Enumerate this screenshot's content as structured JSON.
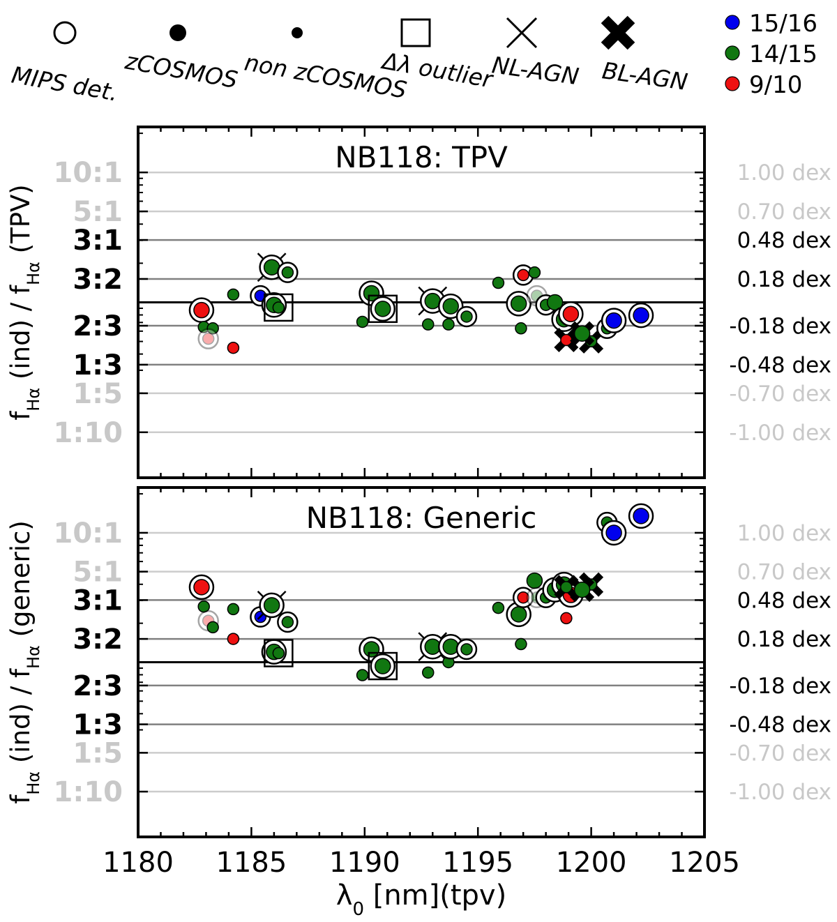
{
  "legend": {
    "symbols": [
      {
        "key": "open-circle",
        "label": "MIPS det."
      },
      {
        "key": "filled-circle-large",
        "label": "zCOSMOS"
      },
      {
        "key": "filled-circle-small",
        "label": "non zCOSMOS"
      },
      {
        "key": "square",
        "label": "Δλ outlier"
      },
      {
        "key": "thin-cross",
        "label": "NL-AGN"
      },
      {
        "key": "bold-cross",
        "label": "BL-AGN"
      }
    ],
    "colors": [
      {
        "label": "15/16",
        "color": "#0000ee"
      },
      {
        "label": "14/15",
        "color": "#117711"
      },
      {
        "label": "9/10",
        "color": "#ee1111"
      }
    ]
  },
  "x_label_parts": {
    "sym": "λ",
    "sub": "0",
    "rest": "[nm](tpv)"
  },
  "y_label_parts": {
    "f": "f",
    "sub": "Hα",
    "mid": " (ind) / f",
    "sub2": "Hα"
  },
  "chart_data": [
    {
      "type": "scatter",
      "title": "NB118: TPV",
      "xlabel": "λ0 [nm](tpv)",
      "ylabel": "fHα (ind) / fHα (TPV)",
      "ylabel_suffix": " (TPV)",
      "xlim": [
        1180,
        1205
      ],
      "xticks": [
        1180,
        1185,
        1190,
        1195,
        1200,
        1205
      ],
      "ylim_dex": [
        -1.35,
        1.35
      ],
      "hlines": [
        {
          "dex": 1.0,
          "ratio": "10:1",
          "dex_label": "1.00 dex",
          "style": "light"
        },
        {
          "dex": 0.7,
          "ratio": "5:1",
          "dex_label": "0.70 dex",
          "style": "light"
        },
        {
          "dex": 0.48,
          "ratio": "3:1",
          "dex_label": "0.48 dex",
          "style": "mid"
        },
        {
          "dex": 0.18,
          "ratio": "3:2",
          "dex_label": "0.18 dex",
          "style": "mid"
        },
        {
          "dex": 0.0,
          "ratio": "",
          "dex_label": "",
          "style": "zero"
        },
        {
          "dex": -0.18,
          "ratio": "2:3",
          "dex_label": "-0.18 dex",
          "style": "mid"
        },
        {
          "dex": -0.48,
          "ratio": "1:3",
          "dex_label": "-0.48 dex",
          "style": "mid"
        },
        {
          "dex": -0.7,
          "ratio": "1:5",
          "dex_label": "-0.70 dex",
          "style": "light"
        },
        {
          "dex": -1.0,
          "ratio": "1:10",
          "dex_label": "-1.00 dex",
          "style": "light"
        }
      ],
      "points": [
        {
          "x": 1182.8,
          "y": -0.06,
          "c": "r",
          "z": true,
          "m": true
        },
        {
          "x": 1182.9,
          "y": -0.19,
          "c": "g",
          "z": false,
          "m": false
        },
        {
          "x": 1183.3,
          "y": -0.2,
          "c": "g",
          "z": false,
          "m": false
        },
        {
          "x": 1183.1,
          "y": -0.28,
          "c": "r",
          "z": false,
          "m": true,
          "faded": true
        },
        {
          "x": 1184.2,
          "y": -0.35,
          "c": "r",
          "z": false,
          "m": false
        },
        {
          "x": 1184.2,
          "y": 0.06,
          "c": "g",
          "z": false,
          "m": false
        },
        {
          "x": 1185.4,
          "y": 0.05,
          "c": "b",
          "z": false,
          "m": true
        },
        {
          "x": 1185.9,
          "y": 0.27,
          "c": "g",
          "z": true,
          "m": true,
          "nl": true
        },
        {
          "x": 1186.6,
          "y": 0.23,
          "c": "g",
          "z": false,
          "m": true
        },
        {
          "x": 1186.0,
          "y": -0.02,
          "c": "g",
          "z": true,
          "m": true
        },
        {
          "x": 1186.2,
          "y": -0.04,
          "c": "g",
          "z": false,
          "m": false,
          "sq": true
        },
        {
          "x": 1189.9,
          "y": -0.15,
          "c": "g",
          "z": false,
          "m": false
        },
        {
          "x": 1190.3,
          "y": 0.07,
          "c": "g",
          "z": true,
          "m": true
        },
        {
          "x": 1190.8,
          "y": -0.05,
          "c": "g",
          "z": true,
          "m": true,
          "sq": true
        },
        {
          "x": 1192.8,
          "y": -0.17,
          "c": "g",
          "z": false,
          "m": false
        },
        {
          "x": 1193.0,
          "y": 0.01,
          "c": "g",
          "z": true,
          "m": true,
          "nl": true
        },
        {
          "x": 1193.7,
          "y": -0.17,
          "c": "g",
          "z": false,
          "m": false
        },
        {
          "x": 1193.8,
          "y": -0.03,
          "c": "g",
          "z": true,
          "m": true
        },
        {
          "x": 1194.5,
          "y": -0.11,
          "c": "g",
          "z": false,
          "m": true
        },
        {
          "x": 1195.9,
          "y": 0.15,
          "c": "g",
          "z": false,
          "m": false
        },
        {
          "x": 1196.8,
          "y": -0.01,
          "c": "g",
          "z": true,
          "m": true
        },
        {
          "x": 1196.9,
          "y": -0.2,
          "c": "g",
          "z": false,
          "m": false
        },
        {
          "x": 1197.0,
          "y": 0.21,
          "c": "r",
          "z": false,
          "m": true
        },
        {
          "x": 1197.5,
          "y": 0.23,
          "c": "g",
          "z": false,
          "m": false
        },
        {
          "x": 1197.6,
          "y": 0.05,
          "c": "g",
          "z": false,
          "m": true,
          "faded": true
        },
        {
          "x": 1198.0,
          "y": -0.02,
          "c": "g",
          "z": false,
          "m": true
        },
        {
          "x": 1198.4,
          "y": 0.0,
          "c": "g",
          "z": true,
          "m": false
        },
        {
          "x": 1198.8,
          "y": -0.13,
          "c": "g",
          "z": true,
          "m": true
        },
        {
          "x": 1199.1,
          "y": -0.09,
          "c": "r",
          "z": true,
          "m": true
        },
        {
          "x": 1198.9,
          "y": -0.29,
          "c": "r",
          "z": false,
          "m": false,
          "bl": true
        },
        {
          "x": 1200.0,
          "y": -0.3,
          "c": "g",
          "z": false,
          "m": false,
          "bl": true
        },
        {
          "x": 1199.6,
          "y": -0.24,
          "c": "g",
          "z": true,
          "m": false,
          "bl": true
        },
        {
          "x": 1200.7,
          "y": -0.2,
          "c": "g",
          "z": false,
          "m": true
        },
        {
          "x": 1201.0,
          "y": -0.14,
          "c": "b",
          "z": true,
          "m": true
        },
        {
          "x": 1202.2,
          "y": -0.1,
          "c": "b",
          "z": true,
          "m": true
        }
      ]
    },
    {
      "type": "scatter",
      "title": "NB118: Generic",
      "xlabel": "λ0 [nm](tpv)",
      "ylabel": "fHα (ind) / fHα (generic)",
      "ylabel_suffix": " (generic)",
      "xlim": [
        1180,
        1205
      ],
      "xticks": [
        1180,
        1185,
        1190,
        1195,
        1200,
        1205
      ],
      "ylim_dex": [
        -1.35,
        1.35
      ],
      "hlines": [
        {
          "dex": 1.0,
          "ratio": "10:1",
          "dex_label": "1.00 dex",
          "style": "light"
        },
        {
          "dex": 0.7,
          "ratio": "5:1",
          "dex_label": "0.70 dex",
          "style": "light"
        },
        {
          "dex": 0.48,
          "ratio": "3:1",
          "dex_label": "0.48 dex",
          "style": "mid"
        },
        {
          "dex": 0.18,
          "ratio": "3:2",
          "dex_label": "0.18 dex",
          "style": "mid"
        },
        {
          "dex": 0.0,
          "ratio": "",
          "dex_label": "",
          "style": "zero"
        },
        {
          "dex": -0.18,
          "ratio": "2:3",
          "dex_label": "-0.18 dex",
          "style": "mid"
        },
        {
          "dex": -0.48,
          "ratio": "1:3",
          "dex_label": "-0.48 dex",
          "style": "mid"
        },
        {
          "dex": -0.7,
          "ratio": "1:5",
          "dex_label": "-0.70 dex",
          "style": "light"
        },
        {
          "dex": -1.0,
          "ratio": "1:10",
          "dex_label": "-1.00 dex",
          "style": "light"
        }
      ],
      "points": [
        {
          "x": 1182.8,
          "y": 0.58,
          "c": "r",
          "z": true,
          "m": true
        },
        {
          "x": 1182.9,
          "y": 0.43,
          "c": "g",
          "z": false,
          "m": false
        },
        {
          "x": 1183.1,
          "y": 0.32,
          "c": "r",
          "z": false,
          "m": true,
          "faded": true
        },
        {
          "x": 1183.3,
          "y": 0.27,
          "c": "g",
          "z": false,
          "m": false
        },
        {
          "x": 1184.2,
          "y": 0.41,
          "c": "g",
          "z": false,
          "m": false
        },
        {
          "x": 1184.2,
          "y": 0.18,
          "c": "r",
          "z": false,
          "m": false
        },
        {
          "x": 1185.4,
          "y": 0.35,
          "c": "b",
          "z": false,
          "m": true
        },
        {
          "x": 1185.9,
          "y": 0.44,
          "c": "g",
          "z": true,
          "m": true,
          "nl": true
        },
        {
          "x": 1186.6,
          "y": 0.31,
          "c": "g",
          "z": false,
          "m": true
        },
        {
          "x": 1186.0,
          "y": 0.08,
          "c": "g",
          "z": true,
          "m": true
        },
        {
          "x": 1186.2,
          "y": 0.07,
          "c": "g",
          "z": false,
          "m": false,
          "sq": true
        },
        {
          "x": 1189.9,
          "y": -0.1,
          "c": "g",
          "z": false,
          "m": false
        },
        {
          "x": 1190.3,
          "y": 0.1,
          "c": "g",
          "z": true,
          "m": true
        },
        {
          "x": 1190.8,
          "y": -0.03,
          "c": "g",
          "z": true,
          "m": true,
          "sq": true
        },
        {
          "x": 1192.8,
          "y": -0.08,
          "c": "g",
          "z": false,
          "m": false
        },
        {
          "x": 1193.0,
          "y": 0.12,
          "c": "g",
          "z": true,
          "m": true,
          "nl": true
        },
        {
          "x": 1193.7,
          "y": 0.0,
          "c": "g",
          "z": false,
          "m": false
        },
        {
          "x": 1193.8,
          "y": 0.12,
          "c": "g",
          "z": true,
          "m": true
        },
        {
          "x": 1194.5,
          "y": 0.1,
          "c": "g",
          "z": false,
          "m": true
        },
        {
          "x": 1195.9,
          "y": 0.42,
          "c": "g",
          "z": false,
          "m": false
        },
        {
          "x": 1196.8,
          "y": 0.37,
          "c": "g",
          "z": true,
          "m": true
        },
        {
          "x": 1196.9,
          "y": 0.14,
          "c": "g",
          "z": false,
          "m": false
        },
        {
          "x": 1197.0,
          "y": 0.5,
          "c": "r",
          "z": false,
          "m": true
        },
        {
          "x": 1197.5,
          "y": 0.63,
          "c": "g",
          "z": true,
          "m": false
        },
        {
          "x": 1197.6,
          "y": 0.5,
          "c": "g",
          "z": false,
          "m": true,
          "faded": true
        },
        {
          "x": 1198.0,
          "y": 0.5,
          "c": "g",
          "z": false,
          "m": true
        },
        {
          "x": 1198.4,
          "y": 0.56,
          "c": "g",
          "z": true,
          "m": true
        },
        {
          "x": 1198.8,
          "y": 0.6,
          "c": "g",
          "z": true,
          "m": true
        },
        {
          "x": 1199.1,
          "y": 0.52,
          "c": "r",
          "z": true,
          "m": true
        },
        {
          "x": 1198.9,
          "y": 0.34,
          "c": "r",
          "z": false,
          "m": false
        },
        {
          "x": 1198.9,
          "y": 0.58,
          "c": "g",
          "z": false,
          "m": false,
          "bl": true
        },
        {
          "x": 1200.0,
          "y": 0.6,
          "c": "g",
          "z": false,
          "m": false,
          "bl": true
        },
        {
          "x": 1199.6,
          "y": 0.56,
          "c": "g",
          "z": true,
          "m": false,
          "bl": true
        },
        {
          "x": 1200.7,
          "y": 1.08,
          "c": "g",
          "z": false,
          "m": true
        },
        {
          "x": 1201.0,
          "y": 1.0,
          "c": "b",
          "z": true,
          "m": true
        },
        {
          "x": 1202.2,
          "y": 1.13,
          "c": "b",
          "z": true,
          "m": true
        }
      ]
    }
  ]
}
